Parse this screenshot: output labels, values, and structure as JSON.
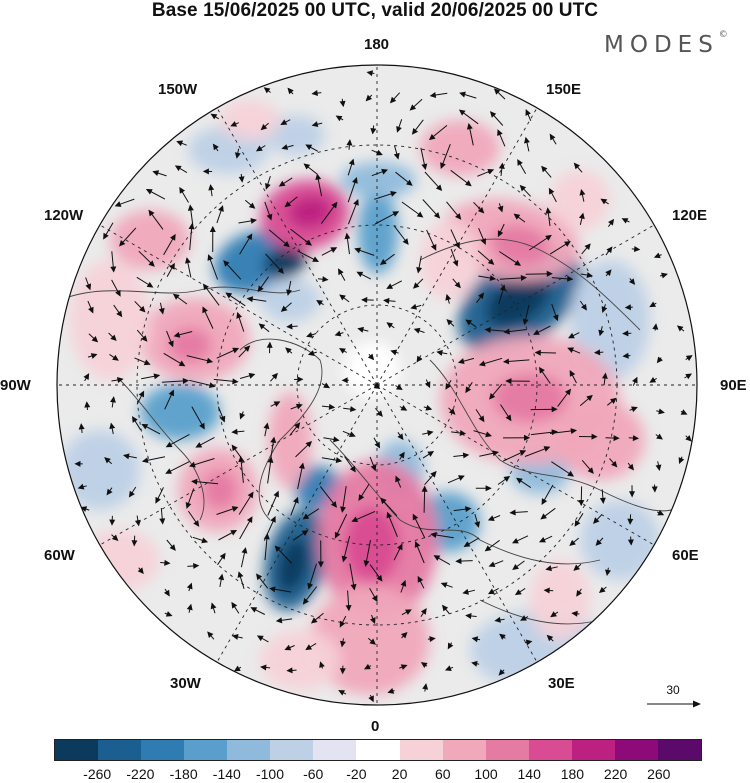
{
  "header": {
    "title": "Base 15/06/2025 00 UTC, valid 20/06/2025 00 UTC",
    "brand": "MODES"
  },
  "map": {
    "projection": "north-polar-stereographic",
    "longitude_labels": {
      "top": "180",
      "bottom": "0",
      "left": "90W",
      "right": "90E",
      "upper_left_1": "150W",
      "upper_left_2": "120W",
      "upper_right_1": "150E",
      "upper_right_2": "120E",
      "lower_left_1": "60W",
      "lower_left_2": "30W",
      "lower_right_1": "60E",
      "lower_right_2": "30E"
    },
    "reference_vector": {
      "value": "30"
    }
  },
  "colorbar": {
    "ticks": [
      "-260",
      "-220",
      "-180",
      "-140",
      "-100",
      "-60",
      "-20",
      "20",
      "60",
      "100",
      "140",
      "180",
      "220",
      "260"
    ],
    "colors": [
      "#0b3a5c",
      "#1a5f8f",
      "#2f7cb3",
      "#5a9fcb",
      "#8fbadb",
      "#bdd0e6",
      "#e3e3f1",
      "#ffffff",
      "#f6d2d8",
      "#f0a8bb",
      "#e57aa3",
      "#d94b92",
      "#bc2081",
      "#8e0a78",
      "#5b0a6b"
    ]
  }
}
